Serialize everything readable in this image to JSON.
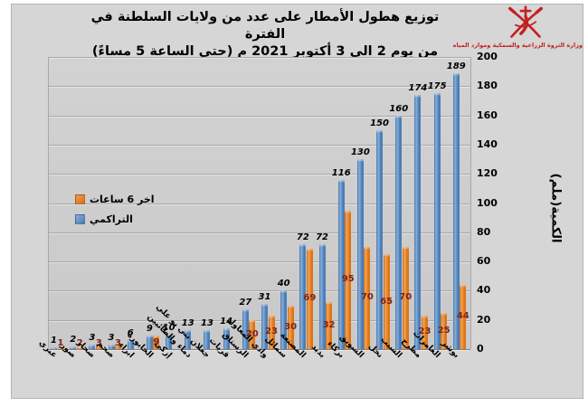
{
  "header": {
    "title_line1": "توزيع هطول الأمطار على عدد من ولايات السلطنة في الفترة",
    "title_line2": "من يوم 2 الى 3 أكتوبر 2021 م (حتى الساعة 5 مساءً)",
    "ministry_name": "وزارة الثروة الزراعية والسمكية وموارد المياه"
  },
  "legend": {
    "last6h": "اخر 6 ساعات",
    "cumulative": "التراكمي"
  },
  "y_axis": {
    "title": "الكمية(ملم)",
    "ticks": [
      0,
      20,
      40,
      60,
      80,
      100,
      120,
      140,
      160,
      180,
      200
    ],
    "max": 200
  },
  "colors": {
    "cumulative_bar": "#4a7cb5",
    "last6h_bar": "#e47b18",
    "cumulative_label": "#000000",
    "last6h_label": "#7b241c",
    "ministry_red": "#c42020",
    "chart_background": "#d6d6d6",
    "plot_background": "#cdcdcd"
  },
  "chart_data": {
    "type": "bar",
    "title": "توزيع هطول الأمطار على عدد من ولايات السلطنة في الفترة من يوم 2 الى 3 أكتوبر 2021 م (حتى الساعة 5 مساءً)",
    "categories": [
      "عبري",
      "صور",
      "صحار",
      "صحم",
      "ابراء",
      "الخابورة",
      "إزكي",
      "دماء والطائيين",
      "جعلان بني بو علي",
      "قريات",
      "الرستاق",
      "وادي المعاول",
      "سمائل",
      "المصنعة",
      "بدبد",
      "بركاء",
      "السويق",
      "نخل",
      "السيب",
      "مطرح",
      "العامرات",
      "بوشر"
    ],
    "series": [
      {
        "name": "التراكمي",
        "color": "#4a7cb5",
        "values": [
          1,
          2,
          3,
          3,
          6,
          9,
          10,
          13,
          13,
          14,
          27,
          31,
          40,
          72,
          72,
          116,
          130,
          150,
          160,
          174,
          175,
          189
        ]
      },
      {
        "name": "اخر 6 ساعات",
        "color": "#e47b18",
        "values": [
          1,
          2,
          3,
          3,
          0,
          9,
          0,
          0,
          0,
          0,
          20,
          23,
          30,
          69,
          32,
          95,
          70,
          65,
          70,
          23,
          25,
          44
        ]
      }
    ],
    "xlabel": "",
    "ylabel": "الكمية(ملم)",
    "ylim": [
      0,
      200
    ],
    "grid": true,
    "legend_position": "inside-left-middle",
    "bar_orientation": "vertical",
    "data_labels": true
  }
}
